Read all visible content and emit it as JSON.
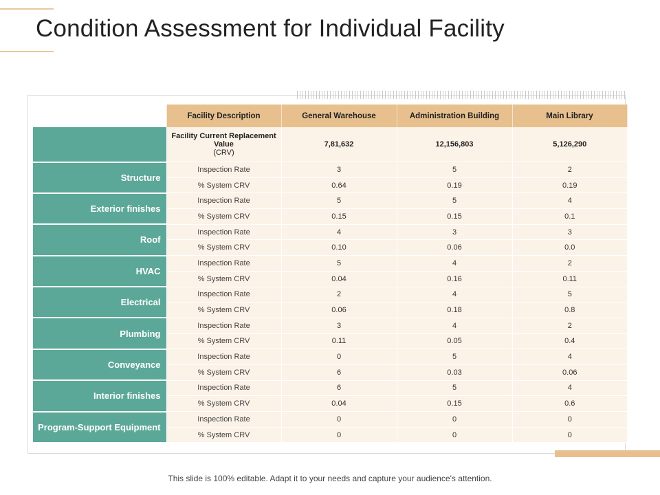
{
  "title": "Condition Assessment for Individual Facility",
  "footer": "This slide is 100% editable. Adapt it to your needs and capture your audience's attention.",
  "colors": {
    "accent_gold": "#e7c08e",
    "accent_teal": "#5ca898",
    "cell_bg": "#fbf2e8"
  },
  "table": {
    "headers": [
      "Facility Description",
      "General Warehouse",
      "Administration Building",
      "Main Library"
    ],
    "crv": {
      "label": "Facility Current Replacement Value",
      "label_suffix": "(CRV)",
      "values": [
        "7,81,632",
        "12,156,803",
        "5,126,290"
      ]
    },
    "categories": [
      {
        "name": "Structure",
        "rows": [
          {
            "metric": "Inspection Rate",
            "values": [
              "3",
              "5",
              "2"
            ]
          },
          {
            "metric": "% System CRV",
            "values": [
              "0.64",
              "0.19",
              "0.19"
            ]
          }
        ]
      },
      {
        "name": "Exterior finishes",
        "rows": [
          {
            "metric": "Inspection Rate",
            "values": [
              "5",
              "5",
              "4"
            ]
          },
          {
            "metric": "% System CRV",
            "values": [
              "0.15",
              "0.15",
              "0.1"
            ]
          }
        ]
      },
      {
        "name": "Roof",
        "rows": [
          {
            "metric": "Inspection Rate",
            "values": [
              "4",
              "3",
              "3"
            ]
          },
          {
            "metric": "% System CRV",
            "values": [
              "0.10",
              "0.06",
              "0.0"
            ]
          }
        ]
      },
      {
        "name": "HVAC",
        "rows": [
          {
            "metric": "Inspection Rate",
            "values": [
              "5",
              "4",
              "2"
            ]
          },
          {
            "metric": "% System CRV",
            "values": [
              "0.04",
              "0.16",
              "0.11"
            ]
          }
        ]
      },
      {
        "name": "Electrical",
        "rows": [
          {
            "metric": "Inspection Rate",
            "values": [
              "2",
              "4",
              "5"
            ]
          },
          {
            "metric": "% System CRV",
            "values": [
              "0.06",
              "0.18",
              "0.8"
            ]
          }
        ]
      },
      {
        "name": "Plumbing",
        "rows": [
          {
            "metric": "Inspection Rate",
            "values": [
              "3",
              "4",
              "2"
            ]
          },
          {
            "metric": "% System CRV",
            "values": [
              "0.11",
              "0.05",
              "0.4"
            ]
          }
        ]
      },
      {
        "name": "Conveyance",
        "rows": [
          {
            "metric": "Inspection Rate",
            "values": [
              "0",
              "5",
              "4"
            ]
          },
          {
            "metric": "% System CRV",
            "values": [
              "6",
              "0.03",
              "0.06"
            ]
          }
        ]
      },
      {
        "name": "Interior finishes",
        "rows": [
          {
            "metric": "Inspection Rate",
            "values": [
              "6",
              "5",
              "4"
            ]
          },
          {
            "metric": "% System CRV",
            "values": [
              "0.04",
              "0.15",
              "0.6"
            ]
          }
        ]
      },
      {
        "name": "Program-Support Equipment",
        "rows": [
          {
            "metric": "Inspection Rate",
            "values": [
              "0",
              "0",
              "0"
            ]
          },
          {
            "metric": "% System CRV",
            "values": [
              "0",
              "0",
              "0"
            ]
          }
        ]
      }
    ]
  }
}
